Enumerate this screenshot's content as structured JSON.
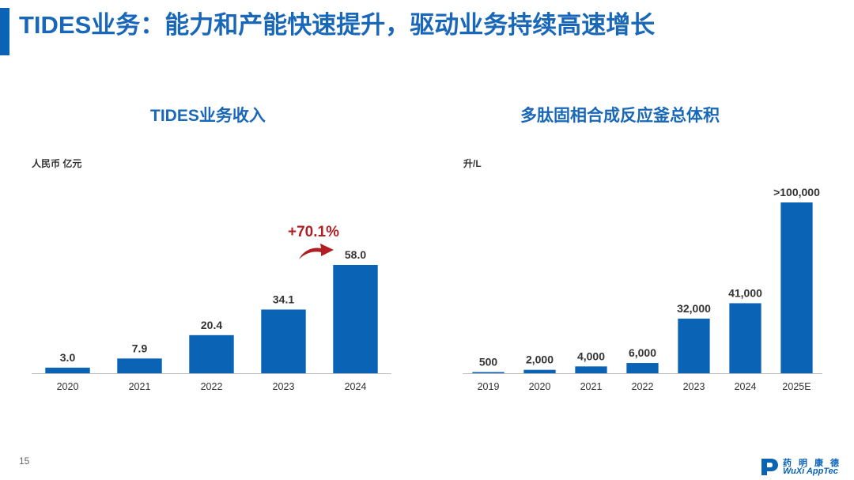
{
  "page": {
    "title": "TIDES业务：能力和产能快速提升，驱动业务持续高速增长",
    "page_number": "15"
  },
  "colors": {
    "brand_blue": "#0B63B6",
    "title_blue": "#1967B8",
    "growth_red": "#B01F24"
  },
  "logo": {
    "cn_text": "药明康德",
    "en_text": "WuXi AppTec",
    "icon": "wuxi-apptec-logo"
  },
  "chart_data": [
    {
      "type": "bar",
      "title": "TIDES业务收入",
      "ylabel": "人民币 亿元",
      "categories": [
        "2020",
        "2021",
        "2022",
        "2023",
        "2024"
      ],
      "values": [
        3.0,
        7.9,
        20.4,
        34.1,
        58.0
      ],
      "data_labels": [
        "3.0",
        "7.9",
        "20.4",
        "34.1",
        "58.0"
      ],
      "ylim": [
        0,
        62
      ],
      "grid": false,
      "annotation": {
        "text": "+70.1%",
        "from": "2023",
        "to": "2024",
        "icon": "curved-arrow-icon"
      }
    },
    {
      "type": "bar",
      "title": "多肽固相合成反应釜总体积",
      "ylabel": "升/L",
      "categories": [
        "2019",
        "2020",
        "2021",
        "2022",
        "2023",
        "2024",
        "2025E"
      ],
      "values": [
        500,
        2000,
        4000,
        6000,
        32000,
        41000,
        100000
      ],
      "data_labels": [
        "500",
        "2,000",
        "4,000",
        "6,000",
        "32,000",
        "41,000",
        ">100,000"
      ],
      "ylim": [
        0,
        102000
      ],
      "grid": false
    }
  ]
}
